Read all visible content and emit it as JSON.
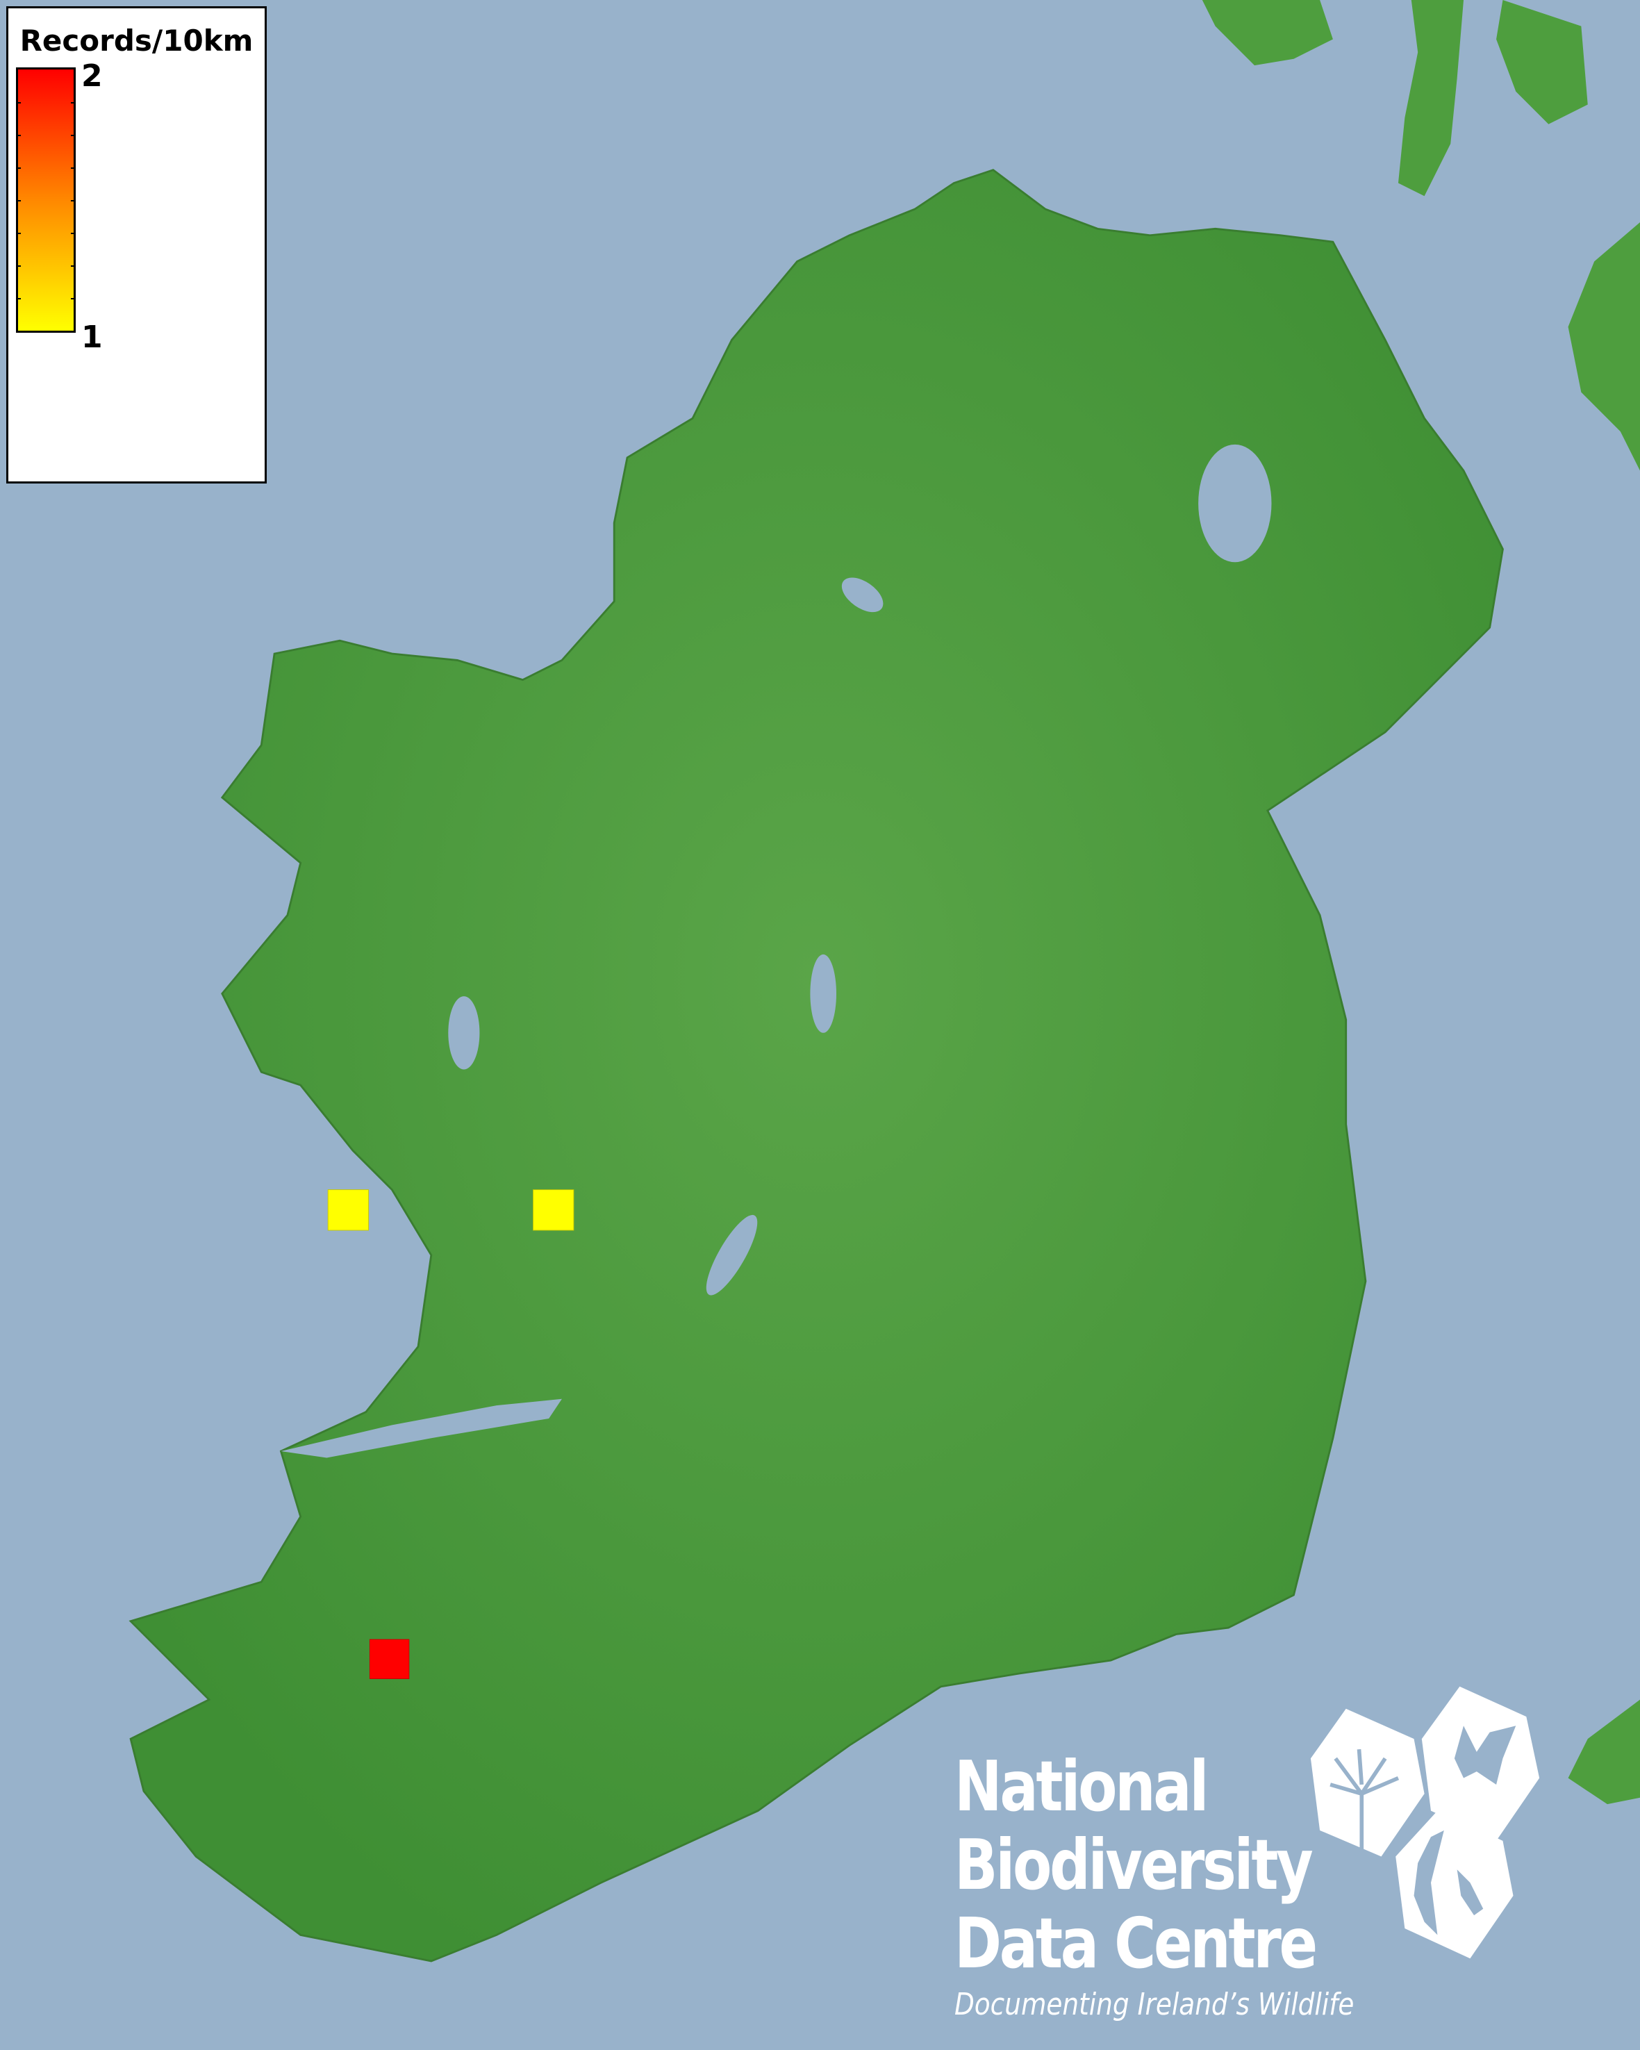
{
  "map": {
    "sea_color": "#98b2cb",
    "land_color": "#4e9e3e",
    "lake_color": "#98b2cb",
    "records": [
      {
        "label": "yellow grid square (1 record)",
        "value": 1,
        "color": "#ffff00"
      },
      {
        "label": "yellow grid square (1 record)",
        "value": 1,
        "color": "#ffff00"
      },
      {
        "label": "red grid square (2 records)",
        "value": 2,
        "color": "#ff0000"
      }
    ]
  },
  "legend": {
    "title": "Records/10km",
    "max_label": "2",
    "min_label": "1",
    "gradient": [
      "#ff0000",
      "#ff8800",
      "#ffff00"
    ]
  },
  "logo": {
    "line1": "National",
    "line2": "Biodiversity",
    "line3": "Data Centre",
    "tagline": "Documenting Ireland’s Wildlife",
    "icons": [
      "tree-icon",
      "butterfly-icon",
      "seahorse-icon"
    ]
  }
}
